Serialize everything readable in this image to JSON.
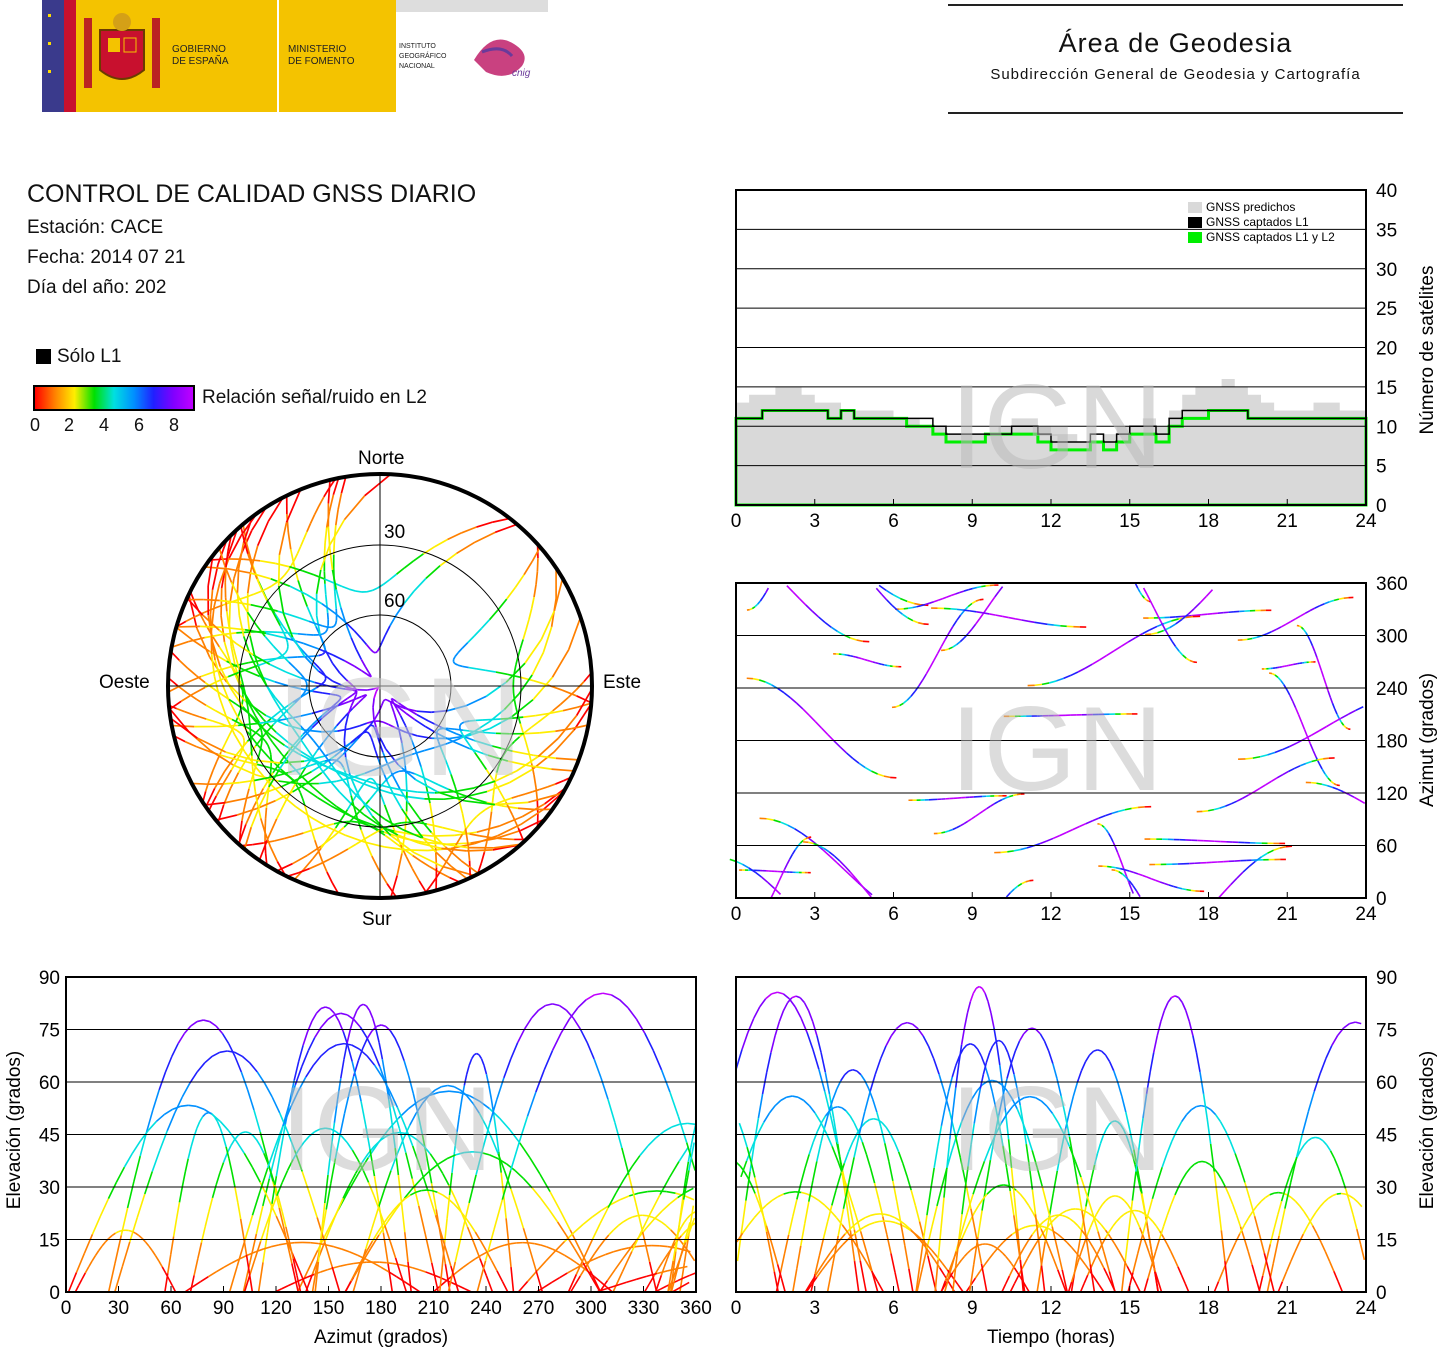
{
  "header": {
    "gov_line1": "GOBIERNO",
    "gov_line2": "DE ESPAÑA",
    "ministry_line1": "MINISTERIO",
    "ministry_line2": "DE FOMENTO",
    "ign_line1": "INSTITUTO",
    "ign_line2": "GEOGRÁFICO",
    "ign_line3": "NACIONAL",
    "cnig_mark": "cnig",
    "area_title": "Área de Geodesia",
    "area_subtitle": "Subdirección General de Geodesia y Cartografía"
  },
  "info": {
    "title": "CONTROL DE CALIDAD GNSS DIARIO",
    "station": "Estación: CACE",
    "date": "Fecha: 2014 07 21",
    "doy": "Día del año: 202"
  },
  "legend": {
    "solo_l1": "Sólo L1",
    "snr_label": "Relación señal/ruido en L2",
    "snr_ticks": [
      "0",
      "2",
      "4",
      "6",
      "8"
    ]
  },
  "watermark": "IGN",
  "colors": {
    "predicted": "#d9d9d9",
    "l1": "#000000",
    "l1l2": "#00ee00",
    "snr_scale": [
      "#ff0000",
      "#ff8000",
      "#ffee00",
      "#00e000",
      "#00e0e0",
      "#0090ff",
      "#2020ff",
      "#8000ff",
      "#c000ff"
    ]
  },
  "chart_data": [
    {
      "id": "skyplot",
      "type": "scatter",
      "title": "",
      "labels": {
        "north": "Norte",
        "south": "Sur",
        "east": "Este",
        "west": "Oeste"
      },
      "elevation_rings": [
        "30",
        "60"
      ]
    },
    {
      "id": "satellites",
      "type": "area",
      "xlabel": "",
      "ylabel": "Número de satélites",
      "xlim": [
        0,
        24
      ],
      "ylim": [
        0,
        40
      ],
      "xticks": [
        "0",
        "3",
        "6",
        "9",
        "12",
        "15",
        "18",
        "21",
        "24"
      ],
      "yticks": [
        "0",
        "5",
        "10",
        "15",
        "20",
        "25",
        "30",
        "35",
        "40"
      ],
      "legend": [
        "GNSS predichos",
        "GNSS captados L1",
        "GNSS captados L1 y L2"
      ],
      "legend_position": "top-right",
      "x": [
        0,
        0.5,
        1,
        1.5,
        2,
        2.5,
        3,
        3.5,
        4,
        4.5,
        5,
        5.5,
        6,
        6.5,
        7,
        7.5,
        8,
        8.5,
        9,
        9.5,
        10,
        10.5,
        11,
        11.5,
        12,
        12.5,
        13,
        13.5,
        14,
        14.5,
        15,
        15.5,
        16,
        16.5,
        17,
        17.5,
        18,
        18.5,
        19,
        19.5,
        20,
        20.5,
        21,
        21.5,
        22,
        22.5,
        23,
        23.5,
        24
      ],
      "series": [
        {
          "name": "GNSS predichos",
          "values": [
            13,
            14,
            14,
            15,
            15,
            14,
            13,
            13,
            12,
            12,
            12,
            12,
            11,
            11,
            10,
            10,
            9,
            9,
            9,
            9,
            10,
            11,
            11,
            10,
            9,
            9,
            8,
            8,
            9,
            10,
            10,
            11,
            10,
            12,
            14,
            15,
            15,
            16,
            15,
            14,
            13,
            12,
            12,
            12,
            13,
            13,
            12,
            12,
            12
          ]
        },
        {
          "name": "GNSS captados L1",
          "values": [
            11,
            11,
            12,
            12,
            12,
            12,
            12,
            11,
            12,
            11,
            11,
            11,
            11,
            11,
            11,
            10,
            9,
            9,
            9,
            9,
            9,
            10,
            10,
            9,
            8,
            8,
            8,
            9,
            8,
            9,
            10,
            10,
            9,
            11,
            12,
            12,
            12,
            12,
            12,
            11,
            11,
            11,
            11,
            11,
            11,
            11,
            11,
            11,
            11
          ]
        },
        {
          "name": "GNSS captados L1 y L2",
          "values": [
            11,
            11,
            12,
            12,
            12,
            12,
            12,
            11,
            12,
            11,
            11,
            11,
            11,
            10,
            10,
            9,
            8,
            8,
            8,
            9,
            9,
            9,
            9,
            8,
            7,
            7,
            7,
            8,
            7,
            8,
            9,
            9,
            8,
            10,
            11,
            11,
            12,
            12,
            12,
            11,
            11,
            11,
            11,
            11,
            11,
            11,
            11,
            11,
            11
          ]
        }
      ]
    },
    {
      "id": "azimuth_time",
      "type": "scatter",
      "xlabel": "",
      "ylabel": "Azimut (grados)",
      "xlim": [
        0,
        24
      ],
      "ylim": [
        0,
        360
      ],
      "xticks": [
        "0",
        "3",
        "6",
        "9",
        "12",
        "15",
        "18",
        "21",
        "24"
      ],
      "yticks": [
        "0",
        "60",
        "120",
        "180",
        "240",
        "300",
        "360"
      ]
    },
    {
      "id": "elev_azimuth",
      "type": "scatter",
      "xlabel": "Azimut (grados)",
      "ylabel": "Elevación (grados)",
      "xlim": [
        0,
        360
      ],
      "ylim": [
        0,
        90
      ],
      "xticks": [
        "0",
        "30",
        "60",
        "90",
        "120",
        "150",
        "180",
        "210",
        "240",
        "270",
        "300",
        "330",
        "360"
      ],
      "yticks": [
        "0",
        "15",
        "30",
        "45",
        "60",
        "75",
        "90"
      ]
    },
    {
      "id": "elev_time",
      "type": "scatter",
      "xlabel": "Tiempo (horas)",
      "ylabel": "Elevación (grados)",
      "xlim": [
        0,
        24
      ],
      "ylim": [
        0,
        90
      ],
      "xticks": [
        "0",
        "3",
        "6",
        "9",
        "12",
        "15",
        "18",
        "21",
        "24"
      ],
      "yticks": [
        "0",
        "15",
        "30",
        "45",
        "60",
        "75",
        "90"
      ]
    }
  ]
}
